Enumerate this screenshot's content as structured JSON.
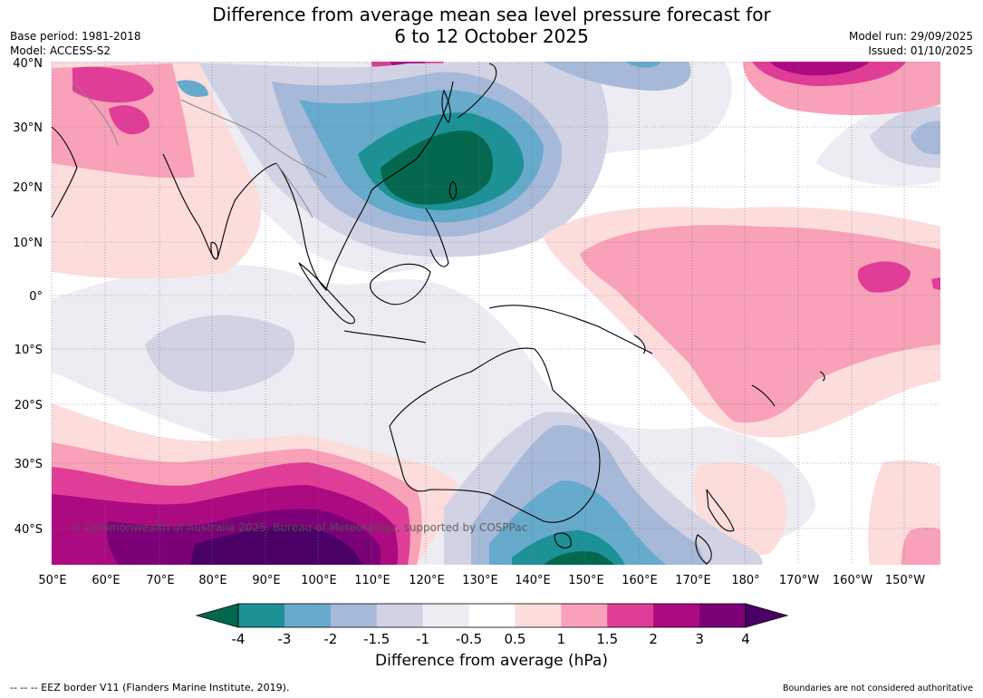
{
  "header": {
    "title_line1": "Difference from average mean sea level pressure forecast for",
    "title_line2": "6 to 12 October 2025",
    "base_period": "Base period: 1981-2018",
    "model": "Model: ACCESS-S2",
    "model_run": "Model run: 29/09/2025",
    "issued": "Issued: 01/10/2025"
  },
  "map": {
    "region": "Asia-Pacific",
    "lat_labels": [
      "40°N",
      "30°N",
      "20°N",
      "10°N",
      "0°",
      "10°S",
      "20°S",
      "30°S",
      "40°S"
    ],
    "lon_labels": [
      "50°E",
      "60°E",
      "70°E",
      "80°E",
      "90°E",
      "100°E",
      "110°E",
      "120°E",
      "130°E",
      "140°E",
      "150°E",
      "160°E",
      "170°E",
      "180°",
      "170°W",
      "160°W",
      "150°W"
    ],
    "copyright": "© Commonwealth of Australia 2025, Bureau of Meteorology, supported by COSPPac"
  },
  "colorbar": {
    "colors": [
      "#04684f",
      "#1c9196",
      "#66aacc",
      "#a7b9d8",
      "#d1d2e4",
      "#eeecf3",
      "#ffffff",
      "#fddcdc",
      "#f8a1b8",
      "#df3d97",
      "#ab0a81",
      "#7c0178",
      "#4b0068"
    ],
    "tick_labels": [
      "-4",
      "-3",
      "-2",
      "-1.5",
      "-1",
      "-0.5",
      "0.5",
      "1",
      "1.5",
      "2",
      "3",
      "4"
    ],
    "title": "Difference from average (hPa)"
  },
  "footer": {
    "eez_note": "-- -- -- EEZ border V11 (Flanders Marine Institute, 2019).",
    "disclaimer": "Boundaries are not considered authoritative"
  }
}
